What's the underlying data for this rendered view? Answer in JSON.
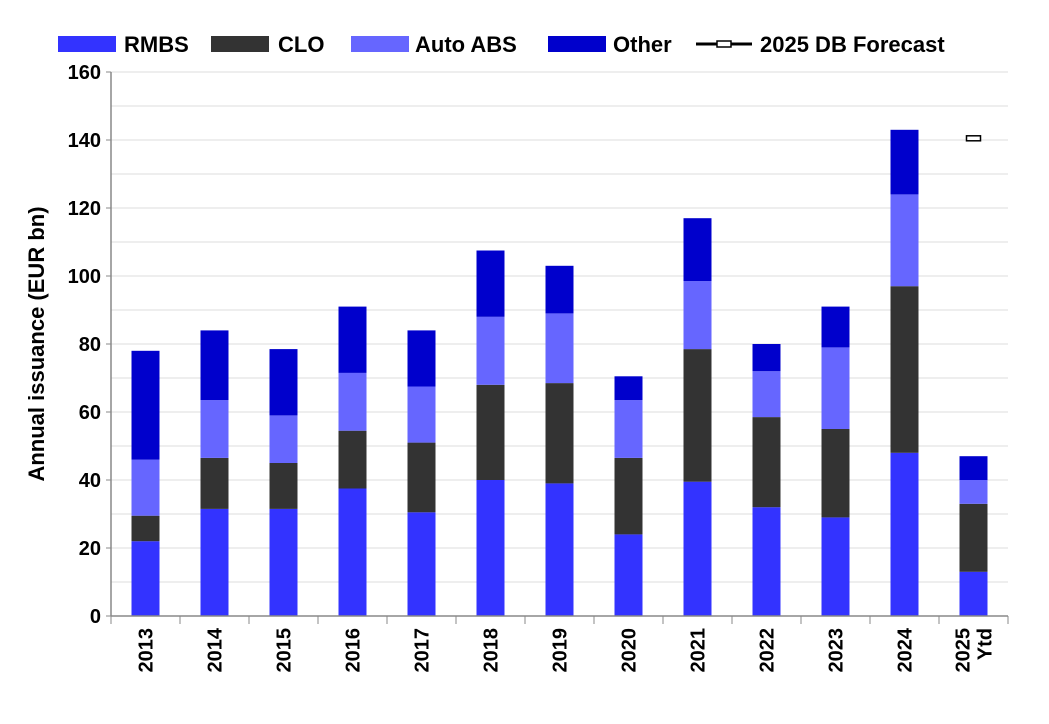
{
  "chart_data": {
    "type": "bar",
    "stacked": true,
    "title": "",
    "xlabel": "",
    "ylabel": "Annual issuance (EUR bn)",
    "ylim": [
      0,
      160
    ],
    "yticks": [
      0,
      20,
      40,
      60,
      80,
      100,
      120,
      140,
      160
    ],
    "grid": true,
    "legend_position": "top",
    "categories": [
      {
        "line1": "2013",
        "line2": ""
      },
      {
        "line1": "2014",
        "line2": ""
      },
      {
        "line1": "2015",
        "line2": ""
      },
      {
        "line1": "2016",
        "line2": ""
      },
      {
        "line1": "2017",
        "line2": ""
      },
      {
        "line1": "2018",
        "line2": ""
      },
      {
        "line1": "2019",
        "line2": ""
      },
      {
        "line1": "2020",
        "line2": ""
      },
      {
        "line1": "2021",
        "line2": ""
      },
      {
        "line1": "2022",
        "line2": ""
      },
      {
        "line1": "2023",
        "line2": ""
      },
      {
        "line1": "2024",
        "line2": ""
      },
      {
        "line1": "2025",
        "line2": "Ytd"
      }
    ],
    "series": [
      {
        "name": "RMBS",
        "color": "#3333ff",
        "values": [
          22,
          31.5,
          31.5,
          37.5,
          30.5,
          40,
          39,
          24,
          39.5,
          32,
          29,
          48,
          13
        ]
      },
      {
        "name": "CLO",
        "color": "#333333",
        "values": [
          7.5,
          15,
          13.5,
          17,
          20.5,
          28,
          29.5,
          22.5,
          39,
          26.5,
          26,
          49,
          20
        ]
      },
      {
        "name": "Auto ABS",
        "color": "#6666ff",
        "values": [
          16.5,
          17,
          14,
          17,
          16.5,
          20,
          20.5,
          17,
          20,
          13.5,
          24,
          27,
          7
        ]
      },
      {
        "name": "Other",
        "color": "#0000cc",
        "values": [
          32,
          20.5,
          19.5,
          19.5,
          16.5,
          19.5,
          14,
          7,
          18.5,
          8,
          12,
          19,
          7
        ]
      }
    ],
    "forecast": {
      "name": "2025 DB Forecast",
      "category_index": 12,
      "value": 140.5,
      "color": "#000000"
    }
  }
}
